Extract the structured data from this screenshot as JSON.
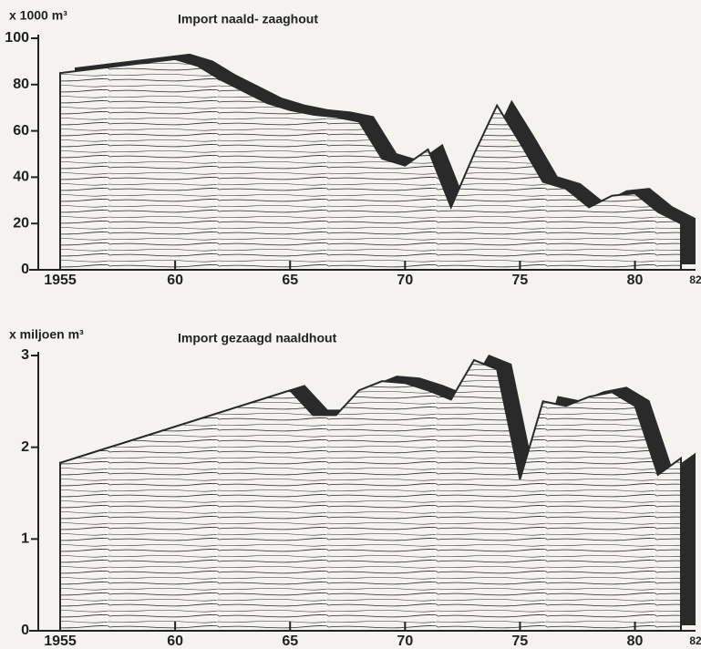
{
  "charts": [
    {
      "type": "area",
      "title": "Import   naald- zaaghout",
      "y_label": "x 1000 m³",
      "color": "#2a2a2a",
      "x": [
        1955,
        1960,
        1961,
        1962,
        1963,
        1964,
        1965,
        1966,
        1967,
        1968,
        1969,
        1970,
        1971,
        1972,
        1973,
        1974,
        1975,
        1976,
        1977,
        1978,
        1979,
        1980,
        1981,
        1982
      ],
      "values": [
        85,
        91,
        88,
        82,
        77,
        72,
        69,
        67,
        66,
        64,
        48,
        45,
        52,
        27,
        50,
        71,
        55,
        38,
        35,
        27,
        32,
        33,
        25,
        20
      ],
      "xlim": [
        1955,
        1982
      ],
      "xticks": [
        1955,
        {
          "value": 1960,
          "label": "60"
        },
        {
          "value": 1965,
          "label": "65"
        },
        {
          "value": 1970,
          "label": "70"
        },
        {
          "value": 1975,
          "label": "75"
        },
        {
          "value": 1980,
          "label": "80"
        },
        {
          "value": 1982,
          "label": "82"
        }
      ],
      "ylim": [
        0,
        100
      ],
      "yticks": [
        0,
        20,
        40,
        60,
        80,
        100
      ]
    },
    {
      "type": "area",
      "title": "Import   gezaagd naaldhout",
      "y_label": "x miljoen m³",
      "color": "#2a2a2a",
      "x": [
        1955,
        1965,
        1966,
        1967,
        1968,
        1969,
        1970,
        1971,
        1972,
        1973,
        1974,
        1975,
        1976,
        1977,
        1978,
        1979,
        1980,
        1981,
        1982
      ],
      "values": [
        1.83,
        2.62,
        2.35,
        2.35,
        2.62,
        2.72,
        2.7,
        2.62,
        2.52,
        2.95,
        2.85,
        1.65,
        2.5,
        2.45,
        2.55,
        2.6,
        2.45,
        1.7,
        1.88
      ],
      "xlim": [
        1955,
        1982
      ],
      "xticks": [
        1955,
        {
          "value": 1960,
          "label": "60"
        },
        {
          "value": 1965,
          "label": "65"
        },
        {
          "value": 1970,
          "label": "70"
        },
        {
          "value": 1975,
          "label": "75"
        },
        {
          "value": 1980,
          "label": "80"
        },
        {
          "value": 1982,
          "label": "82"
        }
      ],
      "ylim": [
        0,
        3
      ],
      "yticks": [
        0,
        1,
        2,
        3
      ]
    }
  ]
}
